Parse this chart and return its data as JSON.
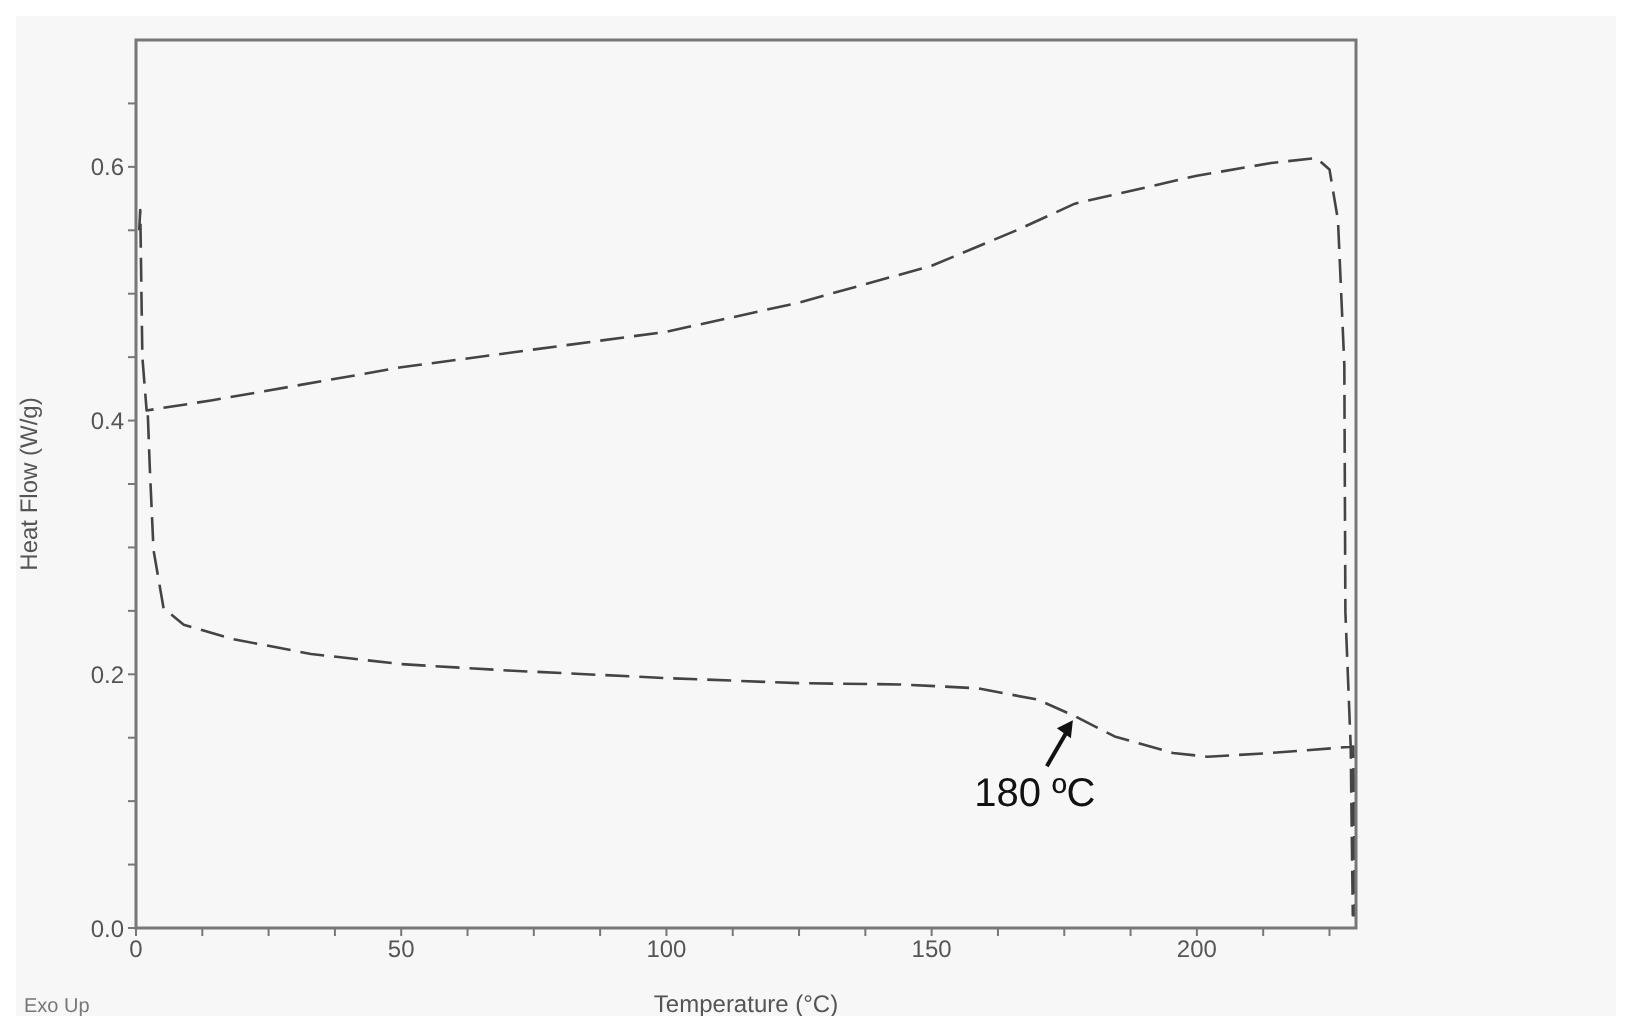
{
  "chart_data": {
    "type": "line",
    "ylabel": "Heat Flow (W/g)",
    "xlabel": "Temperature (°C)",
    "xlim": [
      0,
      230
    ],
    "xticks": [
      0,
      {
        "value": 12.5,
        "label": null
      },
      {
        "value": 25,
        "label": null
      },
      {
        "value": 37.5,
        "label": null
      },
      50,
      {
        "value": 62.5,
        "label": null
      },
      {
        "value": 75,
        "label": null
      },
      {
        "value": 87.5,
        "label": null
      },
      100,
      {
        "value": 112.5,
        "label": null
      },
      {
        "value": 125,
        "label": null
      },
      {
        "value": 137.5,
        "label": null
      },
      150,
      {
        "value": 162.5,
        "label": null
      },
      {
        "value": 175,
        "label": null
      },
      {
        "value": 187.5,
        "label": null
      },
      200,
      {
        "value": 212.5,
        "label": null
      },
      {
        "value": 225,
        "label": null
      }
    ],
    "ylim": [
      0,
      0.7
    ],
    "yticks": [
      {
        "value": 0,
        "label": "0.0"
      },
      {
        "value": 0.05,
        "label": null
      },
      {
        "value": 0.1,
        "label": null
      },
      {
        "value": 0.15,
        "label": null
      },
      0.2,
      {
        "value": 0.25,
        "label": null
      },
      {
        "value": 0.3,
        "label": null
      },
      {
        "value": 0.35,
        "label": null
      },
      0.4,
      {
        "value": 0.45,
        "label": null
      },
      {
        "value": 0.5,
        "label": null
      },
      {
        "value": 0.55,
        "label": null
      },
      0.6,
      {
        "value": 0.65,
        "label": null
      }
    ],
    "marker": "none",
    "line_style": "dashed",
    "series": [
      {
        "color": "#444444",
        "x": [
          0.6,
          0.8,
          1.2,
          2,
          14.4,
          50,
          100,
          125,
          150,
          166,
          177,
          200,
          214,
          222.5,
          225,
          226.6,
          227.8,
          228,
          229,
          229.4,
          229.8,
          229.5,
          214,
          202,
          195.5,
          184.5,
          177,
          170,
          158.6,
          144,
          125,
          100,
          70,
          50,
          33,
          18,
          9,
          5.2,
          3.3,
          2.6,
          2.2
        ],
        "values": [
          0.55,
          0.566,
          0.45,
          0.408,
          0.416,
          0.442,
          0.47,
          0.493,
          0.522,
          0.55,
          0.571,
          0.593,
          0.603,
          0.607,
          0.598,
          0.558,
          0.444,
          0.249,
          0.143,
          0.01,
          0.01,
          0.143,
          0.138,
          0.135,
          0.138,
          0.151,
          0.167,
          0.18,
          0.189,
          0.192,
          0.193,
          0.197,
          0.203,
          0.208,
          0.216,
          0.228,
          0.239,
          0.252,
          0.298,
          0.363,
          0.408
        ]
      }
    ],
    "annotations": [
      {
        "text": "180 ºC",
        "x": 177,
        "y": 0.167
      },
      "Exo Up"
    ]
  }
}
